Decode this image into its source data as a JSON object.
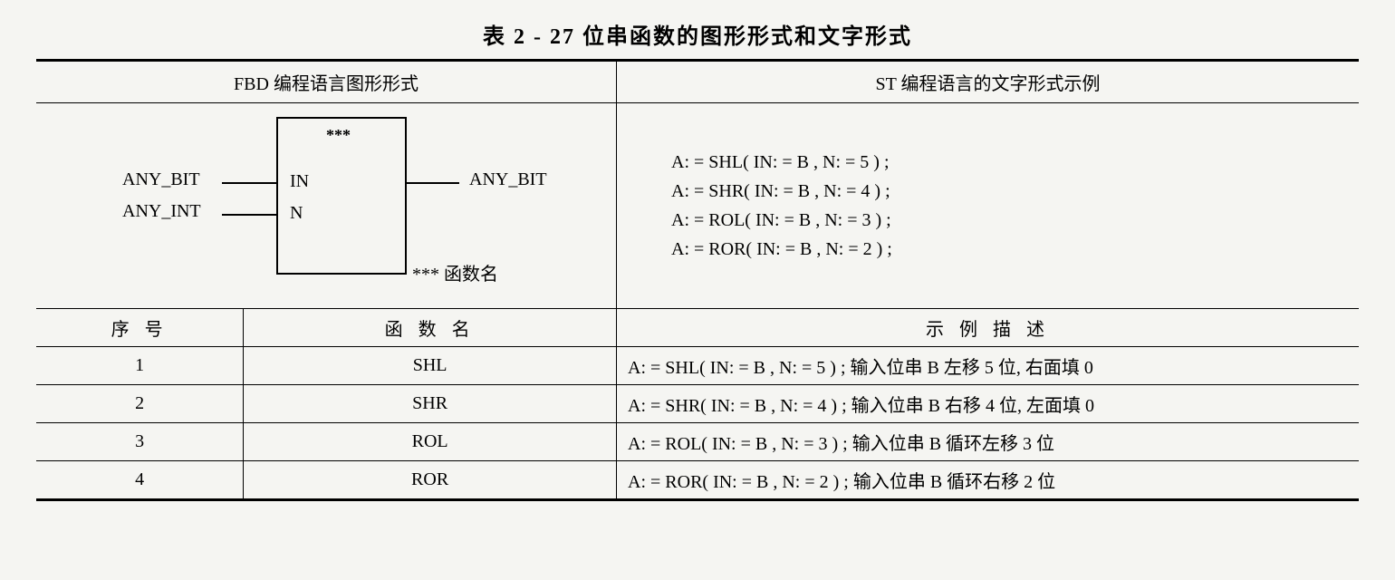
{
  "title": "表 2 - 27  位串函数的图形形式和文字形式",
  "header": {
    "left": "FBD 编程语言图形形式",
    "right": "ST 编程语言的文字形式示例"
  },
  "diagram": {
    "stars": "***",
    "in_label": "IN",
    "n_label": "N",
    "left_top": "ANY_BIT",
    "left_bottom": "ANY_INT",
    "right_out": "ANY_BIT",
    "fname_note": "*** 函数名"
  },
  "st_examples": [
    "A: = SHL( IN: = B , N: = 5 ) ;",
    "A: = SHR( IN: = B , N: = 4 ) ;",
    "A: = ROL( IN: = B , N: = 3 ) ;",
    "A: = ROR( IN: = B , N: = 2 ) ;"
  ],
  "sub_columns": {
    "seq": "序    号",
    "fname": "函  数  名",
    "desc": "示 例 描 述"
  },
  "rows": [
    {
      "seq": "1",
      "fname": "SHL",
      "desc": "A: = SHL( IN: = B , N: = 5 ) ; 输入位串 B 左移 5 位, 右面填 0"
    },
    {
      "seq": "2",
      "fname": "SHR",
      "desc": "A: = SHR( IN: = B , N: = 4 ) ; 输入位串 B 右移 4 位, 左面填 0"
    },
    {
      "seq": "3",
      "fname": "ROL",
      "desc": "A: = ROL( IN: = B , N: = 3 ) ; 输入位串 B 循环左移 3 位"
    },
    {
      "seq": "4",
      "fname": "ROR",
      "desc": "A: = ROR( IN: = B , N: = 2 ) ; 输入位串 B 循环右移 2 位"
    }
  ]
}
